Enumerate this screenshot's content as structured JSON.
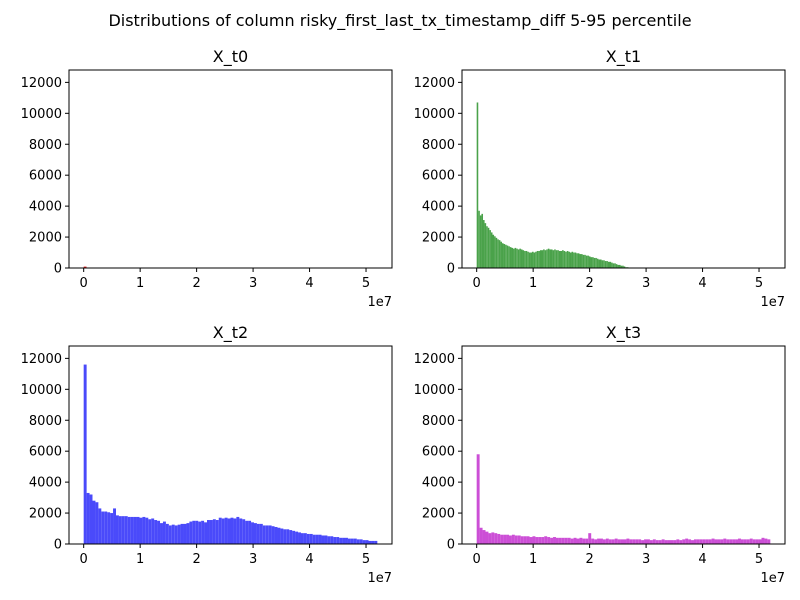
{
  "figure": {
    "title": "Distributions of column risky_first_last_tx_timestamp_diff 5-95 percentile"
  },
  "chart_data": [
    {
      "type": "bar",
      "title": "X_t0",
      "xlim": [
        -2600000,
        54600000
      ],
      "ylim": [
        0,
        12800
      ],
      "x_ticks": [
        0,
        10000000,
        20000000,
        30000000,
        40000000,
        50000000
      ],
      "x_tick_labels": [
        "0",
        "1",
        "2",
        "3",
        "4",
        "5"
      ],
      "x_offset_label": "1e7",
      "y_ticks": [
        0,
        2000,
        4000,
        6000,
        8000,
        10000,
        12000
      ],
      "y_tick_labels": [
        "0",
        "2000",
        "4000",
        "6000",
        "8000",
        "10000",
        "12000"
      ],
      "color": "#e41a1c",
      "bins": [
        [
          0,
          500000,
          90
        ]
      ]
    },
    {
      "type": "bar",
      "title": "X_t1",
      "xlim": [
        -2600000,
        54600000
      ],
      "ylim": [
        0,
        12800
      ],
      "x_ticks": [
        0,
        10000000,
        20000000,
        30000000,
        40000000,
        50000000
      ],
      "x_tick_labels": [
        "0",
        "1",
        "2",
        "3",
        "4",
        "5"
      ],
      "x_offset_label": "1e7",
      "y_ticks": [
        0,
        2000,
        4000,
        6000,
        8000,
        10000,
        12000
      ],
      "y_tick_labels": [
        "0",
        "2000",
        "4000",
        "6000",
        "8000",
        "10000",
        "12000"
      ],
      "color": "#4aa24a",
      "bin_start": 0,
      "bin_width": 280000,
      "counts": [
        10700,
        3700,
        3400,
        3500,
        3100,
        2900,
        2700,
        2600,
        2450,
        2300,
        2150,
        2050,
        1950,
        1850,
        1800,
        1700,
        1600,
        1550,
        1500,
        1450,
        1400,
        1350,
        1300,
        1250,
        1300,
        1250,
        1200,
        1250,
        1200,
        1150,
        1100,
        1100,
        1050,
        1000,
        1000,
        1050,
        1000,
        1050,
        1100,
        1100,
        1150,
        1150,
        1200,
        1150,
        1200,
        1250,
        1200,
        1200,
        1150,
        1200,
        1150,
        1150,
        1100,
        1100,
        1150,
        1100,
        1050,
        1100,
        1050,
        1000,
        1050,
        1000,
        1000,
        950,
        950,
        900,
        900,
        850,
        850,
        800,
        800,
        750,
        700,
        700,
        650,
        650,
        600,
        550,
        550,
        500,
        500,
        450,
        450,
        400,
        400,
        350,
        300,
        300,
        250,
        200,
        200,
        150,
        150,
        100,
        50,
        50,
        30
      ]
    },
    {
      "type": "bar",
      "title": "X_t2",
      "xlim": [
        -2600000,
        54600000
      ],
      "ylim": [
        0,
        12800
      ],
      "x_ticks": [
        0,
        10000000,
        20000000,
        30000000,
        40000000,
        50000000
      ],
      "x_tick_labels": [
        "0",
        "1",
        "2",
        "3",
        "4",
        "5"
      ],
      "x_offset_label": "1e7",
      "y_ticks": [
        0,
        2000,
        4000,
        6000,
        8000,
        10000,
        12000
      ],
      "y_tick_labels": [
        "0",
        "2000",
        "4000",
        "6000",
        "8000",
        "10000",
        "12000"
      ],
      "color": "#4a4afa",
      "bin_start": 0,
      "bin_width": 520000,
      "counts": [
        11600,
        3300,
        3200,
        2800,
        2700,
        2300,
        2100,
        2100,
        2050,
        2000,
        2300,
        1850,
        1800,
        1800,
        1800,
        1750,
        1750,
        1750,
        1750,
        1700,
        1750,
        1700,
        1600,
        1650,
        1550,
        1500,
        1350,
        1450,
        1300,
        1200,
        1250,
        1200,
        1250,
        1300,
        1300,
        1350,
        1450,
        1500,
        1500,
        1450,
        1500,
        1400,
        1550,
        1550,
        1600,
        1550,
        1700,
        1650,
        1700,
        1650,
        1700,
        1650,
        1750,
        1650,
        1600,
        1500,
        1500,
        1400,
        1350,
        1300,
        1300,
        1200,
        1200,
        1200,
        1150,
        1100,
        1050,
        1000,
        950,
        950,
        900,
        850,
        800,
        750,
        700,
        700,
        650,
        650,
        600,
        600,
        600,
        550,
        550,
        500,
        500,
        450,
        450,
        400,
        400,
        400,
        350,
        350,
        350,
        300,
        300,
        250,
        250,
        200,
        200,
        200
      ]
    },
    {
      "type": "bar",
      "title": "X_t3",
      "xlim": [
        -2600000,
        54600000
      ],
      "ylim": [
        0,
        12800
      ],
      "x_ticks": [
        0,
        10000000,
        20000000,
        30000000,
        40000000,
        50000000
      ],
      "x_tick_labels": [
        "0",
        "1",
        "2",
        "3",
        "4",
        "5"
      ],
      "x_offset_label": "1e7",
      "y_ticks": [
        0,
        2000,
        4000,
        6000,
        8000,
        10000,
        12000
      ],
      "y_tick_labels": [
        "0",
        "2000",
        "4000",
        "6000",
        "8000",
        "10000",
        "12000"
      ],
      "color": "#cc4fd6",
      "bin_start": 0,
      "bin_width": 520000,
      "counts": [
        5800,
        1050,
        900,
        800,
        700,
        750,
        700,
        650,
        600,
        600,
        600,
        550,
        600,
        550,
        550,
        500,
        500,
        500,
        450,
        500,
        450,
        450,
        450,
        500,
        450,
        400,
        450,
        400,
        400,
        400,
        400,
        400,
        350,
        400,
        350,
        400,
        350,
        350,
        700,
        350,
        300,
        350,
        350,
        300,
        350,
        300,
        300,
        350,
        300,
        300,
        300,
        350,
        300,
        300,
        300,
        300,
        250,
        300,
        300,
        250,
        300,
        250,
        250,
        300,
        250,
        250,
        250,
        250,
        300,
        250,
        300,
        350,
        300,
        250,
        300,
        300,
        300,
        300,
        300,
        300,
        350,
        300,
        300,
        300,
        350,
        300,
        300,
        300,
        300,
        350,
        300,
        300,
        300,
        350,
        300,
        300,
        300,
        400,
        350,
        300
      ]
    }
  ]
}
